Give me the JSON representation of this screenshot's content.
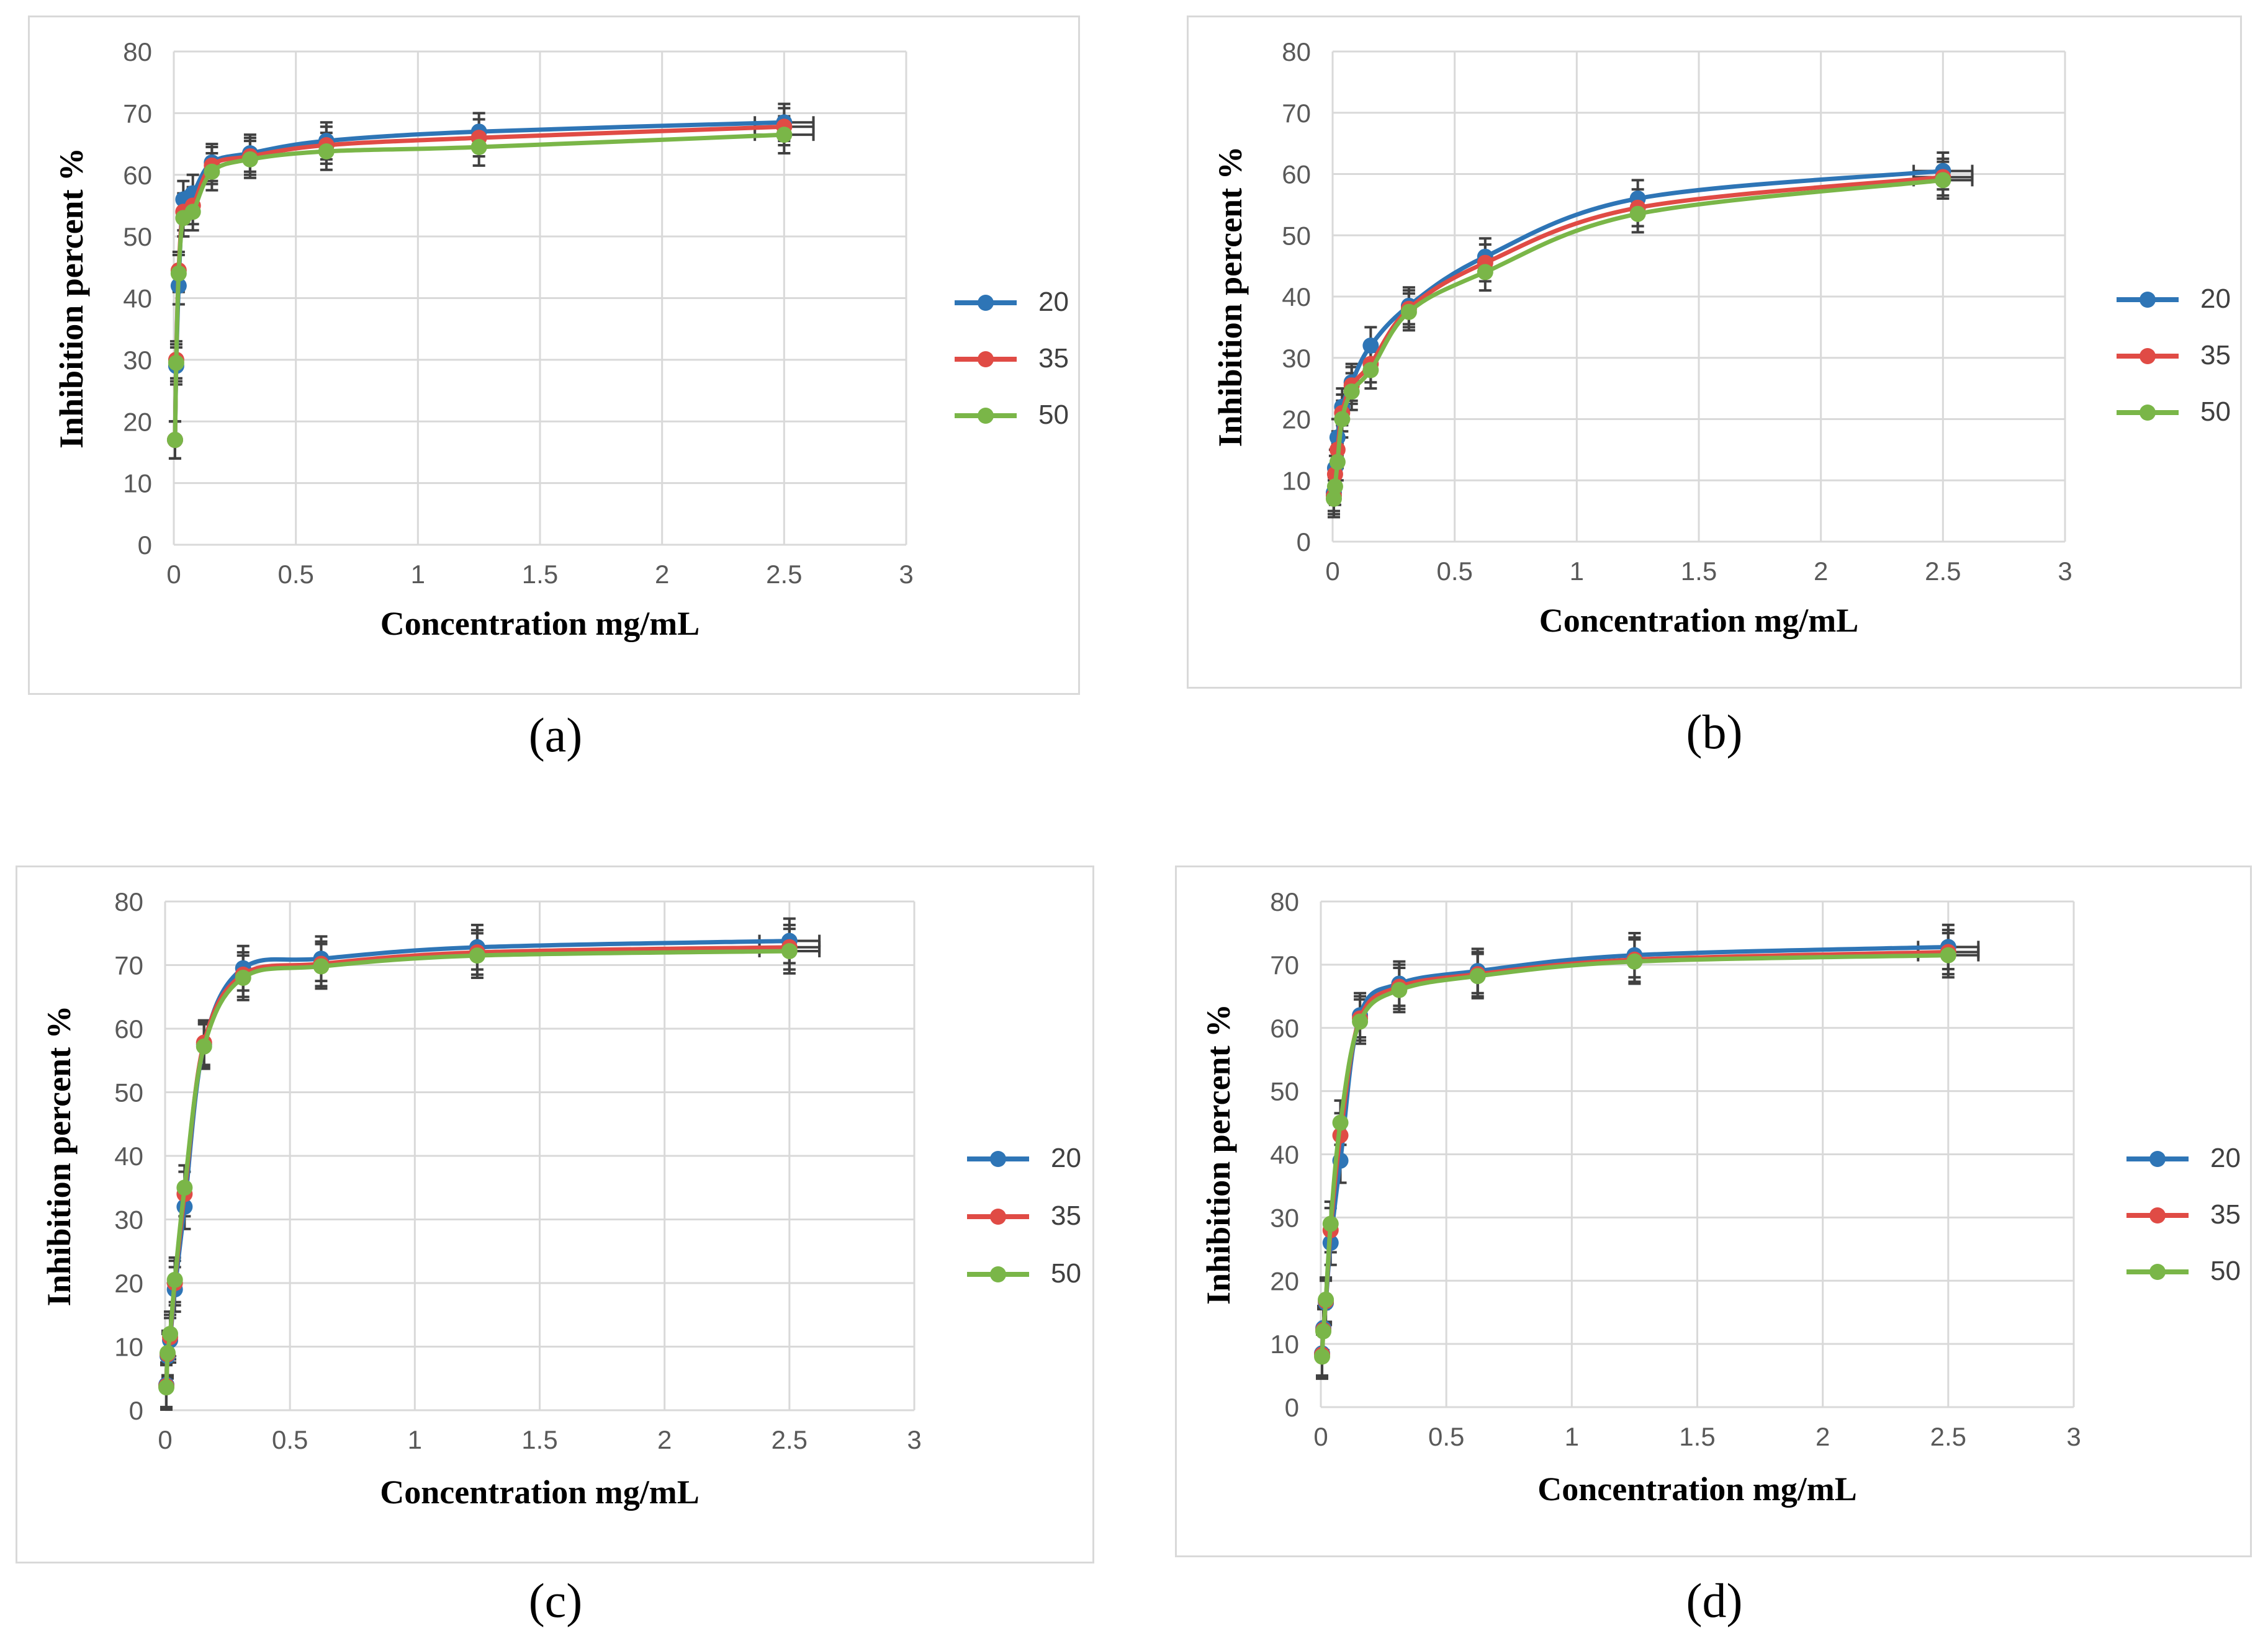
{
  "colors": {
    "s20": "#2e75b6",
    "s35": "#e04b45",
    "s50": "#7ab648",
    "grid": "#d9d9d9",
    "error_bar": "#404040"
  },
  "chart_data": [
    {
      "type": "line",
      "caption": "(a)",
      "xlabel": "Concentration mg/mL",
      "ylabel": "Inhibition percent %",
      "xlim": [
        0,
        3
      ],
      "ylim": [
        0,
        80
      ],
      "x_ticks": [
        "0",
        "0.5",
        "1",
        "1.5",
        "2",
        "2.5",
        "3"
      ],
      "y_ticks": [
        "0",
        "10",
        "20",
        "30",
        "40",
        "50",
        "60",
        "70",
        "80"
      ],
      "x": [
        0.005,
        0.01,
        0.02,
        0.039,
        0.078,
        0.156,
        0.3125,
        0.625,
        1.25,
        2.5
      ],
      "series": [
        {
          "name": "20",
          "values": [
            17,
            29,
            42,
            56,
            57,
            62,
            63.5,
            65.5,
            67,
            68.5
          ]
        },
        {
          "name": "35",
          "values": [
            17,
            30,
            44.5,
            54,
            55,
            61.5,
            63,
            64.8,
            66,
            67.8
          ]
        },
        {
          "name": "50",
          "values": [
            17,
            29.5,
            44,
            53,
            54,
            60.5,
            62.5,
            63.8,
            64.5,
            66.5
          ]
        }
      ],
      "error_y": 3,
      "error_x": 0.12,
      "legend": [
        "20",
        "35",
        "50"
      ]
    },
    {
      "type": "line",
      "caption": "(b)",
      "xlabel": "Concentration mg/mL",
      "ylabel": "Inhibition percent %",
      "xlim": [
        0,
        3
      ],
      "ylim": [
        0,
        80
      ],
      "x_ticks": [
        "0",
        "0.5",
        "1",
        "1.5",
        "2",
        "2.5",
        "3"
      ],
      "y_ticks": [
        "0",
        "10",
        "20",
        "30",
        "40",
        "50",
        "60",
        "70",
        "80"
      ],
      "x": [
        0.005,
        0.01,
        0.02,
        0.039,
        0.078,
        0.156,
        0.3125,
        0.625,
        1.25,
        2.5
      ],
      "series": [
        {
          "name": "20",
          "values": [
            8,
            12,
            17,
            22,
            26,
            32,
            38.5,
            46.5,
            56,
            60.5
          ]
        },
        {
          "name": "35",
          "values": [
            7.5,
            11,
            15,
            21,
            25.5,
            29,
            38,
            45.5,
            54.5,
            59.5
          ]
        },
        {
          "name": "50",
          "values": [
            7,
            9,
            13,
            20,
            24.5,
            28,
            37.5,
            44,
            53.5,
            59
          ]
        }
      ],
      "error_y": 3,
      "error_x": 0.12,
      "legend": [
        "20",
        "35",
        "50"
      ]
    },
    {
      "type": "line",
      "caption": "(c)",
      "xlabel": "Concentration mg/mL",
      "ylabel": "Inhibition percent %",
      "xlim": [
        0,
        3
      ],
      "ylim": [
        0,
        80
      ],
      "x_ticks": [
        "0",
        "0.5",
        "1",
        "1.5",
        "2",
        "2.5",
        "3"
      ],
      "y_ticks": [
        "0",
        "10",
        "20",
        "30",
        "40",
        "50",
        "60",
        "70",
        "80"
      ],
      "x": [
        0.005,
        0.01,
        0.02,
        0.039,
        0.078,
        0.156,
        0.3125,
        0.625,
        1.25,
        2.5
      ],
      "series": [
        {
          "name": "20",
          "values": [
            4,
            8.5,
            11,
            19,
            32,
            57.5,
            69.5,
            71,
            72.8,
            73.8
          ]
        },
        {
          "name": "35",
          "values": [
            3.8,
            8.8,
            11.5,
            20,
            34,
            57.8,
            68.5,
            70.2,
            72,
            72.8
          ]
        },
        {
          "name": "50",
          "values": [
            3.6,
            9,
            12,
            20.5,
            35,
            57.2,
            68,
            69.8,
            71.5,
            72.2
          ]
        }
      ],
      "error_y": 3.5,
      "error_x": 0.12,
      "legend": [
        "20",
        "35",
        "50"
      ]
    },
    {
      "type": "line",
      "caption": "(d)",
      "xlabel": "Concentration mg/mL",
      "ylabel": "Inhibition percent %",
      "xlim": [
        0,
        3
      ],
      "ylim": [
        0,
        80
      ],
      "x_ticks": [
        "0",
        "0.5",
        "1",
        "1.5",
        "2",
        "2.5",
        "3"
      ],
      "y_ticks": [
        "0",
        "10",
        "20",
        "30",
        "40",
        "50",
        "60",
        "70",
        "80"
      ],
      "x": [
        0.005,
        0.01,
        0.02,
        0.039,
        0.078,
        0.156,
        0.3125,
        0.625,
        1.25,
        2.5
      ],
      "series": [
        {
          "name": "20",
          "values": [
            8.5,
            12.5,
            16.5,
            26,
            39,
            62,
            67,
            69,
            71.5,
            72.8
          ]
        },
        {
          "name": "35",
          "values": [
            8.3,
            12.2,
            16.8,
            28,
            43,
            61.5,
            66.5,
            68.5,
            70.8,
            72
          ]
        },
        {
          "name": "50",
          "values": [
            8,
            12,
            17,
            29,
            45,
            61,
            66,
            68.2,
            70.5,
            71.5
          ]
        }
      ],
      "error_y": 3.5,
      "error_x": 0.12,
      "legend": [
        "20",
        "35",
        "50"
      ]
    }
  ]
}
